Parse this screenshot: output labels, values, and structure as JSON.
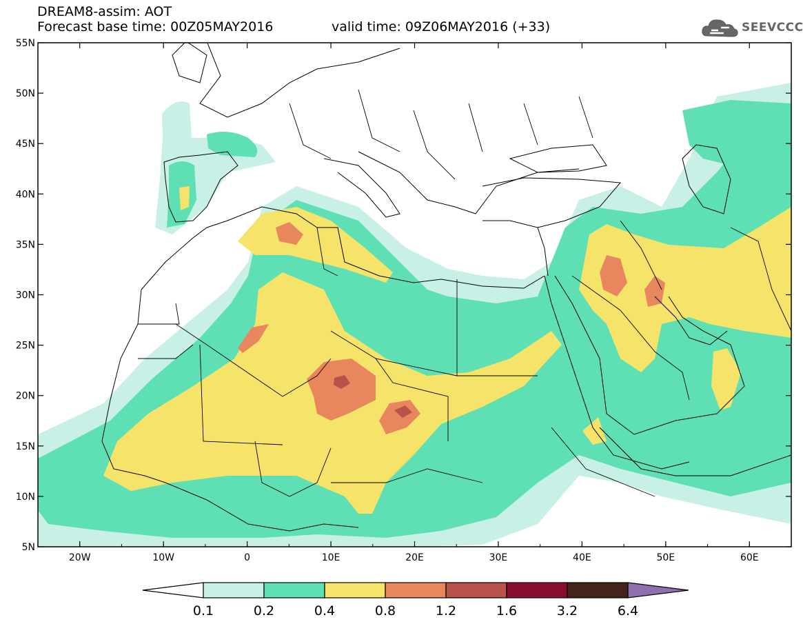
{
  "header": {
    "title": "DREAM8-assim: AOT",
    "base_time": "Forecast base time: 00Z05MAY2016",
    "valid_time": "valid time: 09Z06MAY2016 (+33)"
  },
  "logo": {
    "text": "SEEVCCC",
    "icon": "cloud-icon"
  },
  "map": {
    "lat_labels": [
      "55N",
      "50N",
      "45N",
      "40N",
      "35N",
      "30N",
      "25N",
      "20N",
      "15N",
      "10N",
      "5N"
    ],
    "lon_labels": [
      "20W",
      "10W",
      "0",
      "10E",
      "20E",
      "30E",
      "40E",
      "50E",
      "60E"
    ]
  },
  "colorbar": {
    "labels": [
      "0.1",
      "0.2",
      "0.4",
      "0.8",
      "1.2",
      "1.6",
      "3.2",
      "6.4"
    ],
    "colors": [
      "#ffffff",
      "#c8f0e6",
      "#5ee0b4",
      "#f5e36a",
      "#e8875e",
      "#b8524a",
      "#8a0d2e",
      "#43231a",
      "#8f6fb0"
    ]
  }
}
